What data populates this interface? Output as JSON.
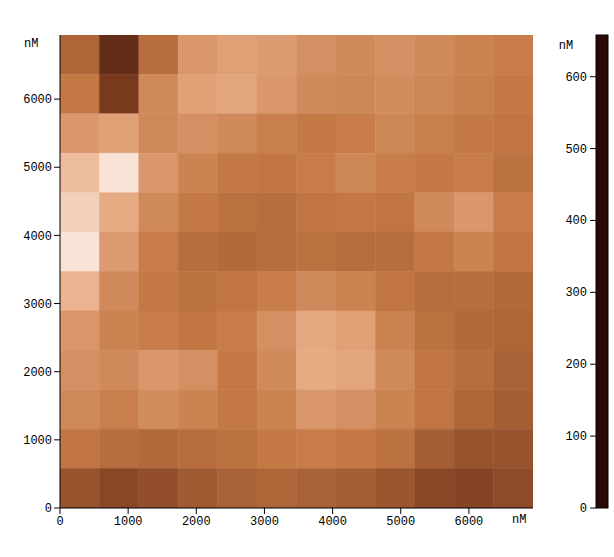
{
  "chart_data": {
    "type": "heatmap",
    "x_label": "nM",
    "y_label": "nM",
    "xlim": [
      0,
      6940
    ],
    "xticks": [
      0,
      1000,
      2000,
      3000,
      4000,
      5000,
      6000
    ],
    "ylim": [
      0,
      6940
    ],
    "yticks": [
      0,
      1000,
      2000,
      3000,
      4000,
      5000,
      6000
    ],
    "cells": [
      [
        280,
        120,
        300,
        420,
        450,
        430,
        400,
        380,
        400,
        380,
        360,
        340
      ],
      [
        330,
        160,
        380,
        450,
        460,
        420,
        380,
        370,
        390,
        370,
        350,
        330
      ],
      [
        420,
        450,
        380,
        400,
        380,
        350,
        330,
        340,
        370,
        350,
        330,
        320
      ],
      [
        520,
        600,
        420,
        360,
        330,
        320,
        340,
        370,
        340,
        330,
        340,
        310
      ],
      [
        560,
        480,
        380,
        330,
        310,
        300,
        320,
        330,
        320,
        380,
        420,
        340
      ],
      [
        600,
        430,
        340,
        300,
        290,
        300,
        310,
        300,
        300,
        330,
        360,
        320
      ],
      [
        500,
        380,
        330,
        310,
        320,
        340,
        380,
        360,
        320,
        300,
        300,
        290
      ],
      [
        420,
        360,
        340,
        320,
        340,
        400,
        470,
        450,
        360,
        310,
        290,
        280
      ],
      [
        400,
        380,
        420,
        400,
        330,
        380,
        480,
        460,
        380,
        320,
        300,
        270
      ],
      [
        380,
        350,
        390,
        360,
        330,
        360,
        420,
        400,
        360,
        320,
        280,
        260
      ],
      [
        320,
        300,
        290,
        300,
        310,
        330,
        340,
        330,
        310,
        260,
        230,
        230
      ],
      [
        230,
        200,
        220,
        250,
        270,
        280,
        270,
        260,
        240,
        200,
        190,
        210
      ]
    ],
    "colorbar": {
      "label": "nM",
      "range": [
        0,
        658
      ],
      "ticks": [
        0,
        100,
        200,
        300,
        400,
        500,
        600
      ]
    }
  }
}
